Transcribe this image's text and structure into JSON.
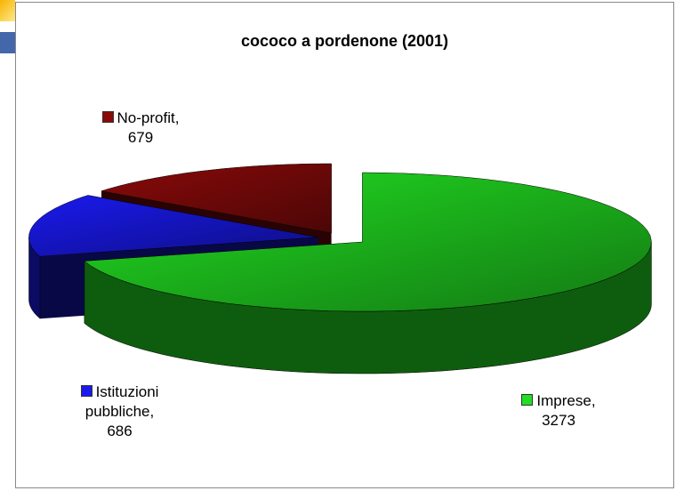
{
  "chart_data": {
    "type": "pie3d",
    "title": "cococo a pordenone (2001)",
    "categories": [
      "Imprese",
      "Istituzioni pubbliche",
      "No-profit"
    ],
    "values": [
      3273,
      686,
      679
    ],
    "colors": [
      "#22dd22",
      "#1a1aee",
      "#8a0a0a"
    ],
    "label_separator": ","
  }
}
